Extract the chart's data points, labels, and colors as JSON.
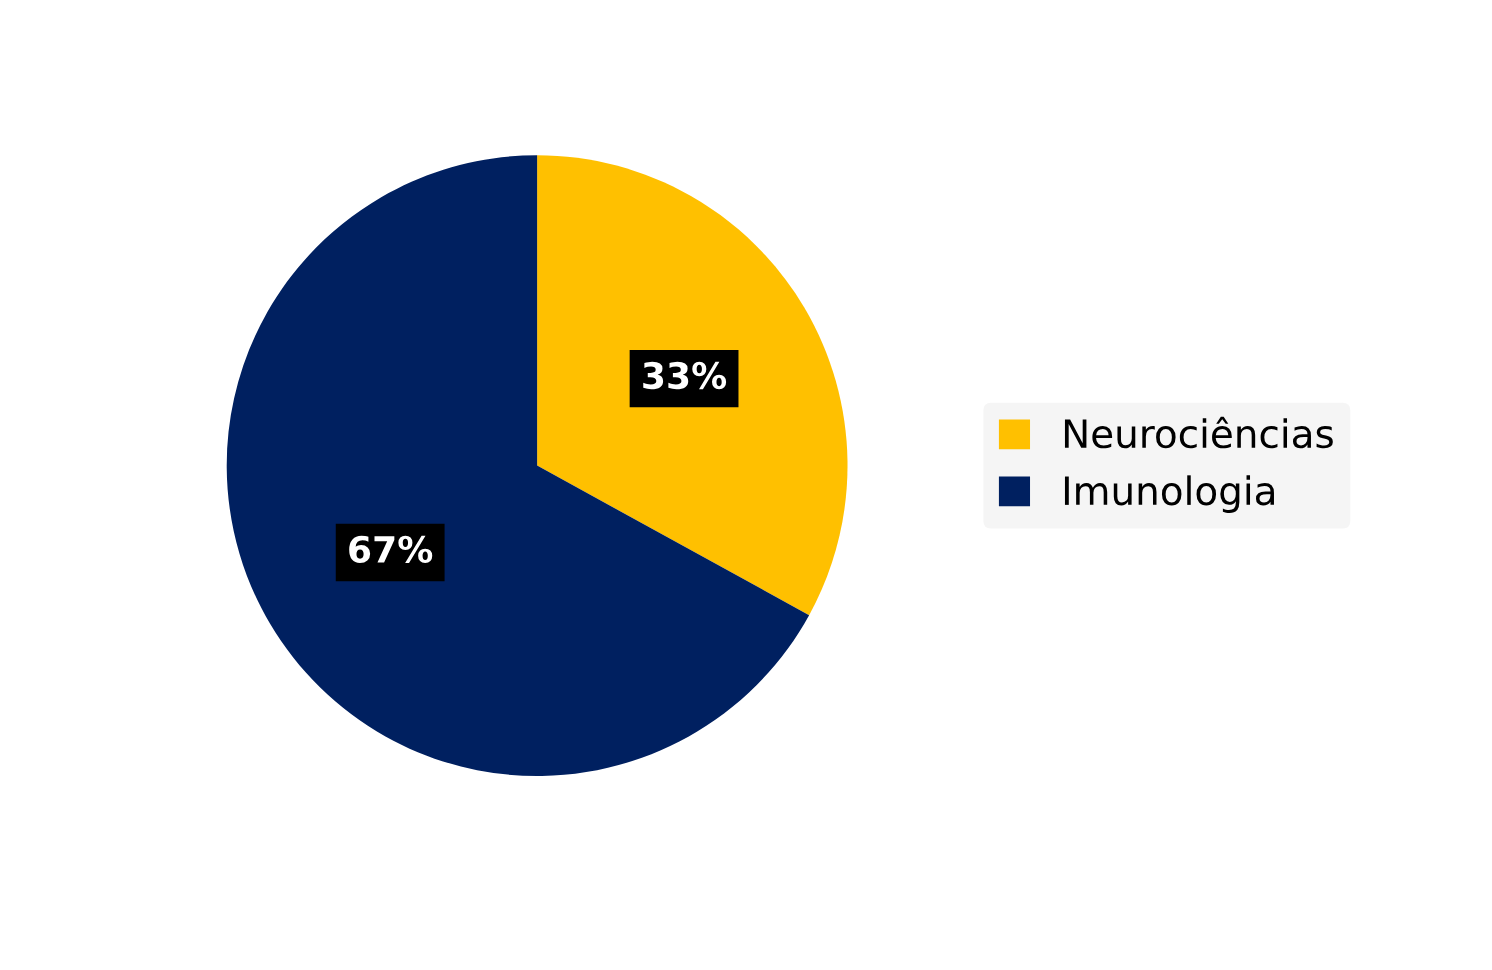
{
  "chart_data": {
    "type": "pie",
    "categories": [
      "Neurociências",
      "Imunologia"
    ],
    "values": [
      33,
      67
    ],
    "colors": [
      "#ffc000",
      "#002060"
    ],
    "value_labels": [
      "33%",
      "67%"
    ],
    "legend": "right"
  }
}
